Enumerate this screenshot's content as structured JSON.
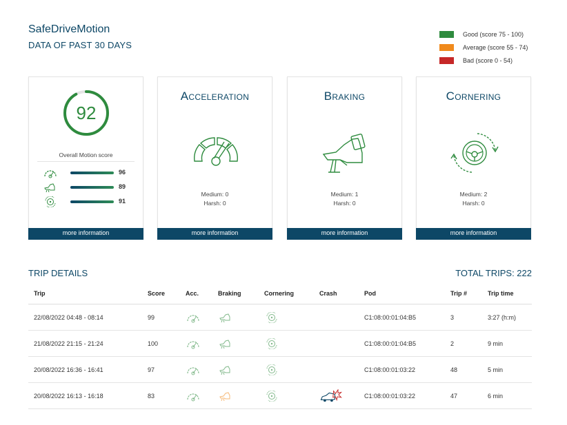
{
  "header": {
    "title": "SafeDriveMotion",
    "subtitle": "DATA OF PAST 30 DAYS"
  },
  "legend": [
    {
      "label": "Good (score 75 - 100)",
      "color": "#2e8b3e"
    },
    {
      "label": "Average (score 55 - 74)",
      "color": "#f08a1c"
    },
    {
      "label": "Bad (score 0 - 54)",
      "color": "#c62828"
    }
  ],
  "overall": {
    "score": "92",
    "score_fraction": 0.92,
    "label": "Overall Motion score",
    "metrics": [
      {
        "icon": "speedometer-icon",
        "value": "96"
      },
      {
        "icon": "brake-pedal-icon",
        "value": "89"
      },
      {
        "icon": "steering-wheel-icon",
        "value": "91"
      }
    ],
    "more": "more information"
  },
  "categories": [
    {
      "title": "Acceleration",
      "icon": "speedometer-icon",
      "medium": "Medium: 0",
      "harsh": "Harsh: 0",
      "more": "more information"
    },
    {
      "title": "Braking",
      "icon": "brake-pedal-icon",
      "medium": "Medium: 1",
      "harsh": "Harsh: 0",
      "more": "more information"
    },
    {
      "title": "Cornering",
      "icon": "steering-wheel-icon",
      "medium": "Medium: 2",
      "harsh": "Harsh: 0",
      "more": "more information"
    }
  ],
  "trips": {
    "title": "TRIP DETAILS",
    "total": "TOTAL TRIPS: 222",
    "columns": [
      "Trip",
      "Score",
      "Acc.",
      "Braking",
      "Cornering",
      "Crash",
      "Pod",
      "Trip #",
      "Trip time"
    ],
    "rows": [
      {
        "trip": "22/08/2022 04:48 - 08:14",
        "score": "99",
        "acc": "good",
        "braking": "good",
        "cornering": "good",
        "crash": "",
        "pod": "C1:08:00:01:04:B5",
        "num": "3",
        "time": "3:27 (h:m)"
      },
      {
        "trip": "21/08/2022 21:15 - 21:24",
        "score": "100",
        "acc": "good",
        "braking": "good",
        "cornering": "good",
        "crash": "",
        "pod": "C1:08:00:01:04:B5",
        "num": "2",
        "time": "9 min"
      },
      {
        "trip": "20/08/2022 16:36 - 16:41",
        "score": "97",
        "acc": "good",
        "braking": "good",
        "cornering": "good",
        "crash": "",
        "pod": "C1:08:00:01:03:22",
        "num": "48",
        "time": "5 min"
      },
      {
        "trip": "20/08/2022 16:13 - 16:18",
        "score": "83",
        "acc": "good",
        "braking": "average",
        "cornering": "good",
        "crash": "crash-car-icon",
        "pod": "C1:08:00:01:03:22",
        "num": "47",
        "time": "6 min"
      }
    ]
  }
}
